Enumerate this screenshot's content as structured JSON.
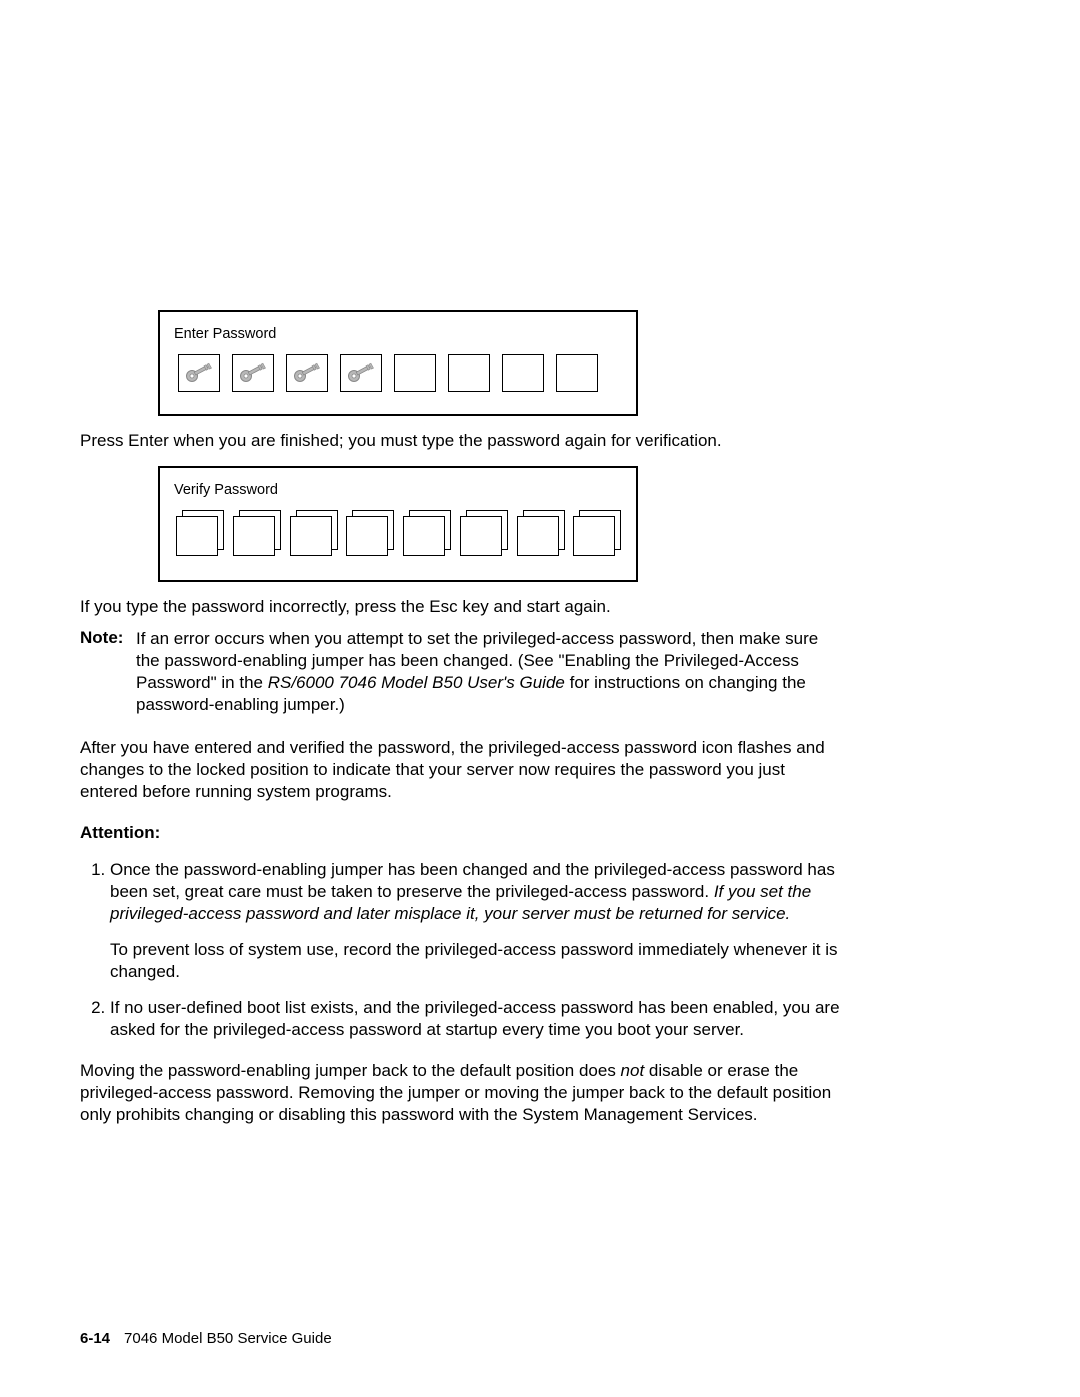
{
  "enterPassword": {
    "label": "Enter Password",
    "filledCount": 4,
    "totalCount": 8
  },
  "paraAfterEnter": "Press Enter when you are finished; you must type the password again for verification.",
  "verifyPassword": {
    "label": "Verify Password",
    "totalCount": 8
  },
  "paraAfterVerify": "If you type the password incorrectly, press the Esc key and start again.",
  "note": {
    "label": "Note:",
    "part1": "If an error occurs when you attempt to set the privileged-access password, then make sure the password-enabling jumper has been changed.  (See \"Enabling the Privileged-Access Password\" in the ",
    "italic1": "RS/6000 7046 Model B50 User's Guide",
    "part2": " for instructions on changing the password-enabling jumper.)"
  },
  "paraAfterNote": "After you have entered and verified the password, the privileged-access password icon flashes and changes to the locked position to indicate that your server now requires the password you just entered before running system programs.",
  "attention": {
    "label": "Attention:",
    "item1": {
      "part1": "Once the password-enabling jumper has been changed and the privileged-access password has been set, great care must be taken to preserve the privileged-access password.  ",
      "italic": "If you set the privileged-access password and later misplace it, your server must be returned for service.",
      "sub": "To prevent loss of system use, record the privileged-access password immediately whenever it is changed."
    },
    "item2": "If no user-defined boot list exists, and the privileged-access password has been enabled, you are asked for the privileged-access password at startup every time you boot your server."
  },
  "paraFinal": {
    "part1": "Moving the password-enabling jumper back to the default position does ",
    "italic": "not",
    "part2": " disable or erase the privileged-access password.  Removing the jumper or moving the jumper back to the default position only prohibits changing or disabling this password with the System Management Services."
  },
  "footer": {
    "pageNum": "6-14",
    "title": "7046 Model B50 Service Guide"
  },
  "colors": {
    "keyFill": "#b8b8b8",
    "keyStroke": "#888888"
  }
}
